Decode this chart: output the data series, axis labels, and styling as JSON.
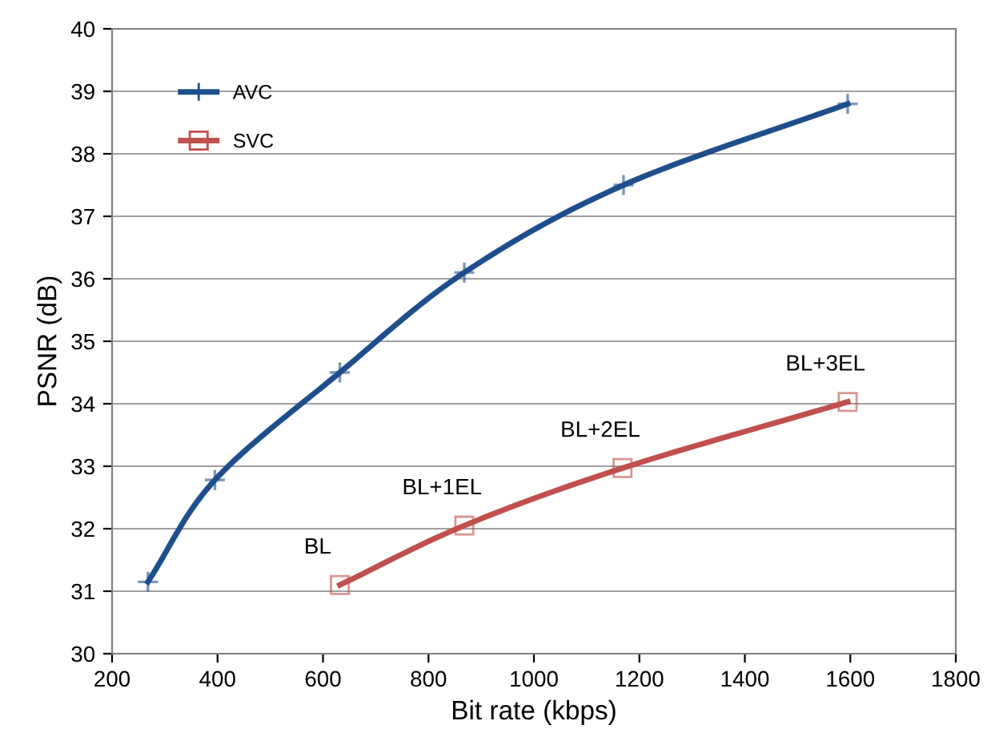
{
  "chart_data": {
    "type": "line",
    "xlabel": "Bit rate (kbps)",
    "ylabel": "PSNR (dB)",
    "xlim": [
      200,
      1800
    ],
    "xticks": [
      200,
      400,
      600,
      800,
      1000,
      1200,
      1400,
      1600,
      1800
    ],
    "ylim": [
      30,
      40
    ],
    "yticks": [
      30,
      31,
      32,
      33,
      34,
      35,
      36,
      37,
      38,
      39,
      40
    ],
    "grid": "y",
    "legend": "top left",
    "line_style": "solid",
    "series": [
      {
        "name": "AVC",
        "color": "#1f4e8c",
        "marker": "cross",
        "x": [
          268,
          395,
          632,
          868,
          1170,
          1595
        ],
        "values": [
          31.15,
          32.78,
          34.5,
          36.1,
          37.5,
          38.8
        ]
      },
      {
        "name": "SVC",
        "color": "#c0504d",
        "marker": "square",
        "x": [
          632,
          868,
          1168,
          1595
        ],
        "values": [
          31.1,
          32.05,
          32.97,
          34.03
        ]
      }
    ],
    "annotations": [
      {
        "text": "BL",
        "x": 632,
        "y": 31.1
      },
      {
        "text": "BL+1EL",
        "x": 868,
        "y": 32.05
      },
      {
        "text": "BL+2EL",
        "x": 1168,
        "y": 32.97
      },
      {
        "text": "BL+3EL",
        "x": 1595,
        "y": 34.03
      }
    ]
  }
}
